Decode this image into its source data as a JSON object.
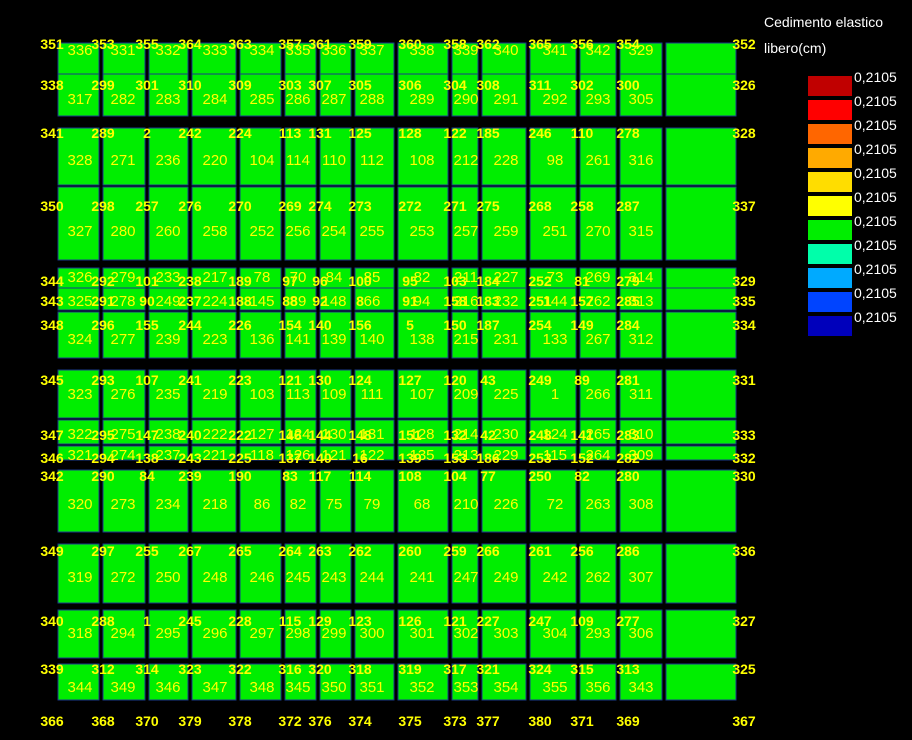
{
  "legend": {
    "title": "Cedimento elastico",
    "subtitle": "libero(cm)",
    "colors": [
      "#c00000",
      "#ff0000",
      "#ff6600",
      "#ffaa00",
      "#ffdd00",
      "#ffff00",
      "#00ee00",
      "#00ffaa",
      "#00aaff",
      "#0044ff",
      "#0000bb"
    ],
    "values": [
      "0,2105",
      "0,2105",
      "0,2105",
      "0,2105",
      "0,2105",
      "0,2105",
      "0,2105",
      "0,2105",
      "0,2105",
      "0,2105",
      "0,2105"
    ]
  },
  "mesh": {
    "fill_color": "#00ee00",
    "node_color": "#ffff00",
    "element_color": "#ffff00",
    "node_rows": [
      [
        "351",
        "353",
        "355",
        "364",
        "363",
        "357",
        "361",
        "359",
        "360",
        "358",
        "362",
        "365",
        "356",
        "354",
        "352"
      ],
      [
        "338",
        "299",
        "301",
        "310",
        "309",
        "303",
        "307",
        "305",
        "306",
        "304",
        "308",
        "311",
        "302",
        "300",
        "326"
      ],
      [
        "341",
        "289",
        "2",
        "242",
        "224",
        "113",
        "131",
        "125",
        "128",
        "122",
        "185",
        "246",
        "110",
        "278",
        "328"
      ],
      [
        "350",
        "298",
        "257",
        "276",
        "270",
        "269",
        "274",
        "273",
        "272",
        "271",
        "275",
        "268",
        "258",
        "287",
        "337"
      ],
      [
        "344",
        "292",
        "101",
        "238",
        "189",
        "97",
        "96",
        "100",
        "95",
        "103",
        "184",
        "252",
        "81",
        "279",
        "329"
      ],
      [
        "343",
        "291",
        "90",
        "237",
        "188",
        "88",
        "92",
        "8",
        "91",
        "158",
        "183",
        "251",
        "157",
        "285",
        "335"
      ],
      [
        "348",
        "296",
        "155",
        "244",
        "226",
        "154",
        "140",
        "156",
        "5",
        "150",
        "187",
        "254",
        "149",
        "284",
        "334"
      ],
      [
        "345",
        "293",
        "107",
        "241",
        "223",
        "121",
        "130",
        "124",
        "127",
        "120",
        "43",
        "249",
        "89",
        "281",
        "331"
      ],
      [
        "347",
        "295",
        "147",
        "240",
        "222",
        "146",
        "144",
        "148",
        "151",
        "132",
        "42",
        "248",
        "141",
        "283",
        "333"
      ],
      [
        "346",
        "294",
        "138",
        "243",
        "225",
        "137",
        "140",
        "16",
        "139",
        "153",
        "186",
        "253",
        "152",
        "282",
        "332"
      ],
      [
        "342",
        "290",
        "84",
        "239",
        "190",
        "83",
        "117",
        "114",
        "108",
        "104",
        "77",
        "250",
        "82",
        "280",
        "330"
      ],
      [
        "349",
        "297",
        "255",
        "267",
        "265",
        "264",
        "263",
        "262",
        "260",
        "259",
        "266",
        "261",
        "256",
        "286",
        "336"
      ],
      [
        "340",
        "288",
        "1",
        "245",
        "228",
        "115",
        "129",
        "123",
        "126",
        "121",
        "227",
        "247",
        "109",
        "277",
        "327"
      ],
      [
        "339",
        "312",
        "314",
        "323",
        "322",
        "316",
        "320",
        "318",
        "319",
        "317",
        "321",
        "324",
        "315",
        "313",
        "325"
      ],
      [
        "366",
        "368",
        "370",
        "379",
        "378",
        "372",
        "376",
        "374",
        "375",
        "373",
        "377",
        "380",
        "371",
        "369",
        "367"
      ]
    ],
    "element_rows": [
      [
        "336",
        "331",
        "332",
        "333",
        "334",
        "335",
        "336",
        "337",
        "338",
        "339",
        "340",
        "341",
        "342",
        "329"
      ],
      [
        "317",
        "282",
        "283",
        "284",
        "285",
        "286",
        "287",
        "288",
        "289",
        "290",
        "291",
        "292",
        "293",
        "305"
      ],
      [
        "328",
        "271",
        "236",
        "220",
        "104",
        "114",
        "110",
        "112",
        "108",
        "212",
        "228",
        "98",
        "261",
        "316"
      ],
      [
        "327",
        "280",
        "260",
        "258",
        "252",
        "256",
        "254",
        "255",
        "253",
        "257",
        "259",
        "251",
        "270",
        "315"
      ],
      [
        "326",
        "279",
        "233",
        "217",
        "78",
        "70",
        "84",
        "85",
        "82",
        "211",
        "227",
        "73",
        "269",
        "314"
      ],
      [
        "325",
        "278",
        "249",
        "224",
        "145",
        "89",
        "148",
        "66",
        "94",
        "216",
        "232",
        "144",
        "262",
        "313"
      ],
      [
        "324",
        "277",
        "239",
        "223",
        "136",
        "141",
        "139",
        "140",
        "138",
        "215",
        "231",
        "133",
        "267",
        "312"
      ],
      [
        "323",
        "276",
        "235",
        "219",
        "103",
        "113",
        "109",
        "111",
        "107",
        "209",
        "225",
        "1",
        "266",
        "311"
      ],
      [
        "322",
        "275",
        "238",
        "222",
        "127",
        "124",
        "130",
        "131",
        "128",
        "214",
        "230",
        "124",
        "265",
        "310"
      ],
      [
        "321",
        "274",
        "237",
        "221",
        "118",
        "126",
        "121",
        "122",
        "135",
        "213",
        "229",
        "115",
        "264",
        "309"
      ],
      [
        "320",
        "273",
        "234",
        "218",
        "86",
        "82",
        "75",
        "79",
        "68",
        "210",
        "226",
        "72",
        "263",
        "308"
      ],
      [
        "319",
        "272",
        "250",
        "248",
        "246",
        "245",
        "243",
        "244",
        "241",
        "247",
        "249",
        "242",
        "262",
        "307"
      ],
      [
        "318",
        "294",
        "295",
        "296",
        "297",
        "298",
        "299",
        "300",
        "301",
        "302",
        "303",
        "304",
        "293",
        "306"
      ],
      [
        "344",
        "349",
        "346",
        "347",
        "348",
        "345",
        "350",
        "351",
        "352",
        "353",
        "354",
        "355",
        "356",
        "343"
      ]
    ]
  }
}
